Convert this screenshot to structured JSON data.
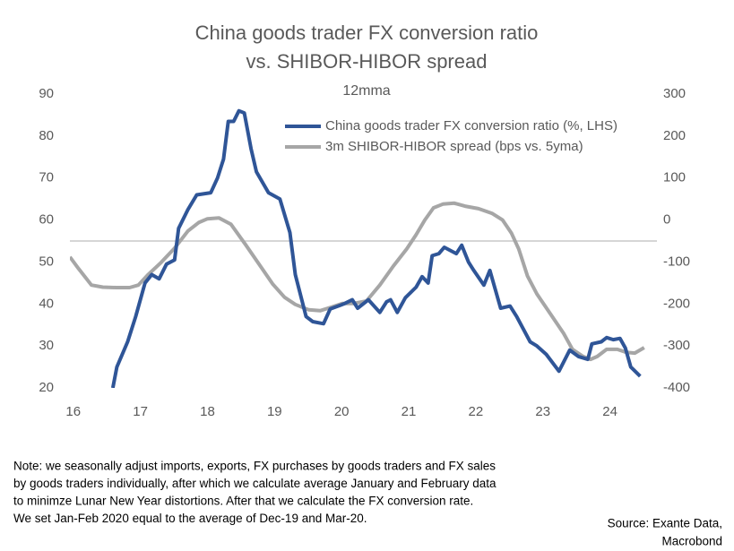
{
  "chart_data": {
    "type": "line",
    "title": [
      "China goods trader FX conversion ratio",
      "vs. SHIBOR-HIBOR spread"
    ],
    "subtitle": "12mma",
    "xlim": [
      15.95,
      24.7
    ],
    "xticks": [
      16,
      17,
      18,
      19,
      20,
      21,
      22,
      23,
      24
    ],
    "ylim": [
      20,
      90
    ],
    "yticks": [
      20,
      30,
      40,
      50,
      60,
      70,
      80,
      90
    ],
    "y2lim": [
      -400,
      300
    ],
    "y2ticks": [
      -400,
      -300,
      -200,
      -100,
      0,
      100,
      200,
      300
    ],
    "hline": 55,
    "series": [
      {
        "name": "China goods trader FX conversion ratio (%, LHS)",
        "color": "#2f5597",
        "x": [
          16.59,
          16.65,
          16.81,
          16.93,
          17.07,
          17.17,
          17.28,
          17.39,
          17.51,
          17.57,
          17.71,
          17.84,
          18.05,
          18.15,
          18.24,
          18.31,
          18.39,
          18.47,
          18.55,
          18.65,
          18.73,
          18.91,
          19.08,
          19.23,
          19.31,
          19.47,
          19.57,
          19.73,
          19.83,
          20.03,
          20.16,
          20.24,
          20.4,
          20.57,
          20.67,
          20.73,
          20.83,
          20.95,
          21.11,
          21.2,
          21.29,
          21.35,
          21.45,
          21.53,
          21.71,
          21.79,
          21.89,
          21.97,
          22.12,
          22.21,
          22.37,
          22.51,
          22.61,
          22.81,
          22.91,
          23.05,
          23.24,
          23.4,
          23.53,
          23.67,
          23.73,
          23.87,
          23.95,
          24.05,
          24.15,
          24.23,
          24.31,
          24.45
        ],
        "values": [
          20,
          25,
          31,
          37,
          45,
          47,
          46,
          49.5,
          50.5,
          58,
          62.5,
          66,
          66.5,
          70,
          74.5,
          83.5,
          83.5,
          86,
          85.5,
          77,
          71.5,
          66.5,
          65,
          57,
          47,
          37,
          35.8,
          35.3,
          38.8,
          40,
          41,
          39,
          41,
          38,
          40.5,
          41,
          38,
          41.5,
          44,
          46.5,
          45,
          51.5,
          52,
          53.5,
          52,
          54,
          50,
          48,
          44.5,
          48,
          39,
          39.5,
          37,
          31,
          30,
          28,
          24,
          29,
          27.5,
          26.8,
          30.5,
          31,
          32,
          31.5,
          31.8,
          29.5,
          25,
          22.8
        ]
      },
      {
        "name": "3m SHIBOR-HIBOR spread (bps vs. 5yma)",
        "color": "#a6a6a6",
        "axis": "y2",
        "x": [
          15.95,
          16.08,
          16.27,
          16.44,
          16.64,
          16.84,
          16.97,
          17.11,
          17.31,
          17.51,
          17.71,
          17.87,
          18.0,
          18.17,
          18.35,
          18.57,
          18.8,
          18.97,
          19.15,
          19.31,
          19.51,
          19.68,
          19.84,
          20.01,
          20.17,
          20.37,
          20.57,
          20.77,
          20.97,
          21.11,
          21.24,
          21.37,
          21.51,
          21.68,
          21.84,
          22.04,
          22.24,
          22.4,
          22.53,
          22.64,
          22.77,
          22.91,
          23.11,
          23.31,
          23.44,
          23.6,
          23.71,
          23.81,
          23.95,
          24.11,
          24.24,
          24.37,
          24.51
        ],
        "values": [
          -88,
          -116,
          -155,
          -160,
          -161,
          -161,
          -155,
          -131,
          -101,
          -67,
          -26,
          -6,
          3,
          5,
          -10,
          -59,
          -112,
          -152,
          -184,
          -201,
          -214,
          -216,
          -208,
          -199,
          -199,
          -193,
          -155,
          -110,
          -69,
          -35,
          0,
          29,
          38,
          40,
          33,
          27,
          16,
          0,
          -31,
          -69,
          -133,
          -176,
          -223,
          -270,
          -308,
          -325,
          -332,
          -325,
          -308,
          -308,
          -315,
          -317,
          -304
        ]
      }
    ],
    "note": [
      "Note: we seasonally adjust imports, exports, FX purchases by goods traders and FX sales",
      "by goods traders individually, after which we calculate average January and February data",
      "to minimze Lunar New Year distortions. After that we calculate the FX conversion rate.",
      "We set Jan-Feb 2020 equal to the average of Dec-19 and Mar-20."
    ],
    "source": [
      "Source: Exante Data,",
      "Macrobond"
    ]
  }
}
